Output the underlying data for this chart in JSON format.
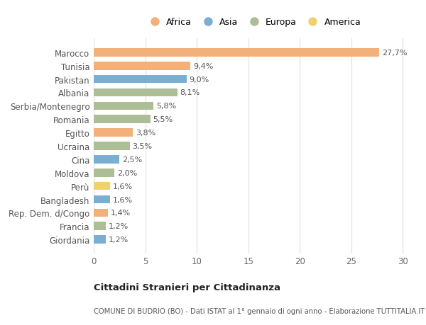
{
  "categories": [
    "Marocco",
    "Tunisia",
    "Pakistan",
    "Albania",
    "Serbia/Montenegro",
    "Romania",
    "Egitto",
    "Ucraina",
    "Cina",
    "Moldova",
    "Perù",
    "Bangladesh",
    "Rep. Dem. d/Congo",
    "Francia",
    "Giordania"
  ],
  "values": [
    27.7,
    9.4,
    9.0,
    8.1,
    5.8,
    5.5,
    3.8,
    3.5,
    2.5,
    2.0,
    1.6,
    1.6,
    1.4,
    1.2,
    1.2
  ],
  "labels": [
    "27,7%",
    "9,4%",
    "9,0%",
    "8,1%",
    "5,8%",
    "5,5%",
    "3,8%",
    "3,5%",
    "2,5%",
    "2,0%",
    "1,6%",
    "1,6%",
    "1,4%",
    "1,2%",
    "1,2%"
  ],
  "continent": [
    "Africa",
    "Africa",
    "Asia",
    "Europa",
    "Europa",
    "Europa",
    "Africa",
    "Europa",
    "Asia",
    "Europa",
    "America",
    "Asia",
    "Africa",
    "Europa",
    "Asia"
  ],
  "colors": {
    "Africa": "#F2B07A",
    "Asia": "#7AAFD4",
    "Europa": "#ABBE96",
    "America": "#F2D06E"
  },
  "legend_order": [
    "Africa",
    "Asia",
    "Europa",
    "America"
  ],
  "title": "Cittadini Stranieri per Cittadinanza",
  "subtitle": "COMUNE DI BUDRIO (BO) - Dati ISTAT al 1° gennaio di ogni anno - Elaborazione TUTTITALIA.IT",
  "xlim": [
    0,
    31
  ],
  "xticks": [
    0,
    5,
    10,
    15,
    20,
    25,
    30
  ],
  "background_color": "#ffffff",
  "grid_color": "#e0e0e0"
}
